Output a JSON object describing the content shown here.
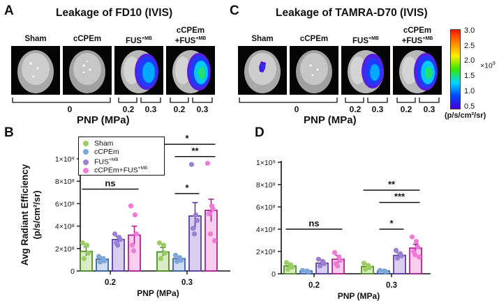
{
  "panel_letters": {
    "A": "A",
    "B": "B",
    "C": "C",
    "D": "D"
  },
  "panel_A": {
    "title": "Leakage of FD10 (IVIS)",
    "groups": [
      {
        "name": "Sham",
        "sup": ""
      },
      {
        "name": "cCPEm",
        "sup": ""
      },
      {
        "name": "FUS",
        "sup": "+MB"
      },
      {
        "line1": "cCPEm",
        "line2": "+FUS",
        "sup": "+MB"
      }
    ],
    "pnp_labels": [
      "0",
      "0",
      "0.2",
      "0.3",
      "0.2",
      "0.3"
    ],
    "pnp_title": "PNP (MPa)"
  },
  "panel_C": {
    "title": "Leakage of TAMRA-D70 (IVIS)",
    "groups": [
      {
        "name": "Sham",
        "sup": ""
      },
      {
        "name": "cCPEm",
        "sup": ""
      },
      {
        "name": "FUS",
        "sup": "+MB"
      },
      {
        "line1": "cCPEm",
        "line2": "+FUS",
        "sup": "+MB"
      }
    ],
    "pnp_labels": [
      "0",
      "0",
      "0.2",
      "0.3",
      "0.2",
      "0.3"
    ],
    "pnp_title": "PNP (MPa)"
  },
  "colorbar": {
    "ticks": [
      "3.0",
      "2.5",
      "2.0",
      "1.5",
      "1.0",
      "0.5"
    ],
    "exponent_base": "×10",
    "exponent_power": "9",
    "unit": "(p/s/cm²/sr)",
    "colors": [
      "#ff1500",
      "#ff8a00",
      "#ffee00",
      "#35e800",
      "#00d9ff",
      "#0044ff",
      "#4a00d6"
    ]
  },
  "legend": [
    {
      "label": "Sham",
      "sup": "",
      "color": "#9ccc63"
    },
    {
      "label": "cCPEm",
      "sup": "",
      "color": "#7ea5d9"
    },
    {
      "label": "FUS",
      "sup": "+MB",
      "color": "#9b7fd0"
    },
    {
      "label": "cCPEm+FUS",
      "sup": "+MB",
      "color": "#f07ad8"
    }
  ],
  "chart_data": [
    {
      "id": "B",
      "type": "bar",
      "title": "",
      "xlabel": "PNP (MPa)",
      "ylabel_line1": "Avg Radiant Efficiency",
      "ylabel_line2": "(p/s/cm²/sr)",
      "ylim": [
        0,
        1000000000
      ],
      "yticks": [
        {
          "value": 0,
          "label": "0"
        },
        {
          "value": 200000000,
          "label": "2×10⁸"
        },
        {
          "value": 400000000,
          "label": "4×10⁸"
        },
        {
          "value": 600000000,
          "label": "6×10⁸"
        },
        {
          "value": 800000000,
          "label": "8×10⁸"
        },
        {
          "value": 1000000000,
          "label": "1×10⁹"
        }
      ],
      "categories": [
        "0.2",
        "0.3"
      ],
      "series": [
        {
          "name": "Sham",
          "color": "#9ccc63",
          "edge": "#4f8f2b",
          "values": [
            175000000,
            170000000
          ],
          "errors": [
            40000000,
            40000000
          ],
          "points": [
            [
              250000000,
              230000000,
              160000000,
              110000000
            ],
            [
              250000000,
              230000000,
              160000000,
              110000000
            ]
          ]
        },
        {
          "name": "cCPEm",
          "color": "#7ea5d9",
          "edge": "#3a64a8",
          "values": [
            105000000,
            110000000
          ],
          "errors": [
            20000000,
            20000000
          ],
          "points": [
            [
              130000000,
              110000000,
              90000000,
              80000000
            ],
            [
              140000000,
              120000000,
              95000000,
              85000000
            ]
          ]
        },
        {
          "name": "FUS+MB",
          "color": "#9b7fd0",
          "edge": "#5b3ea8",
          "values": [
            280000000,
            490000000
          ],
          "errors": [
            30000000,
            120000000
          ],
          "points": [
            [
              330000000,
              300000000,
              280000000,
              250000000,
              230000000
            ],
            [
              950000000,
              500000000,
              450000000,
              380000000,
              330000000
            ]
          ]
        },
        {
          "name": "cCPEm+FUS+MB",
          "color": "#f07ad8",
          "edge": "#b0228f",
          "values": [
            320000000,
            540000000
          ],
          "errors": [
            80000000,
            100000000
          ],
          "points": [
            [
              580000000,
              500000000,
              330000000,
              230000000,
              180000000
            ],
            [
              960000000,
              580000000,
              550000000,
              510000000,
              330000000,
              270000000
            ]
          ]
        }
      ],
      "significance": [
        {
          "label": "ns",
          "from_group": 0,
          "from_series": 0,
          "to_group": 0,
          "to_series": 3,
          "y": 730000000
        },
        {
          "label": "*",
          "from_group": 1,
          "from_series": 0,
          "to_group": 1,
          "to_series": 3,
          "y": 1130000000
        },
        {
          "label": "**",
          "from_group": 1,
          "from_series": 1,
          "to_group": 1,
          "to_series": 3,
          "y": 1020000000
        },
        {
          "label": "*",
          "from_group": 1,
          "from_series": 1,
          "to_group": 1,
          "to_series": 2,
          "y": 690000000
        }
      ]
    },
    {
      "id": "D",
      "type": "bar",
      "title": "",
      "xlabel": "PNP (MPa)",
      "ylabel_line1": "",
      "ylabel_line2": "",
      "ylim": [
        0,
        1000000000
      ],
      "yticks": [
        {
          "value": 0,
          "label": "0"
        },
        {
          "value": 200000000,
          "label": "2×10⁸"
        },
        {
          "value": 400000000,
          "label": "4×10⁸"
        },
        {
          "value": 600000000,
          "label": "6×10⁸"
        },
        {
          "value": 800000000,
          "label": "8×10⁸"
        },
        {
          "value": 1000000000,
          "label": "1×10⁹"
        }
      ],
      "categories": [
        "0.2",
        "0.3"
      ],
      "series": [
        {
          "name": "Sham",
          "color": "#9ccc63",
          "edge": "#4f8f2b",
          "values": [
            70000000,
            65000000
          ],
          "errors": [
            20000000,
            20000000
          ],
          "points": [
            [
              100000000,
              80000000,
              60000000,
              40000000
            ],
            [
              95000000,
              75000000,
              55000000,
              40000000
            ]
          ]
        },
        {
          "name": "cCPEm",
          "color": "#7ea5d9",
          "edge": "#3a64a8",
          "values": [
            25000000,
            25000000
          ],
          "errors": [
            5000000,
            5000000
          ],
          "points": [
            [
              30000000,
              25000000,
              20000000
            ],
            [
              30000000,
              25000000,
              20000000
            ]
          ]
        },
        {
          "name": "FUS+MB",
          "color": "#9b7fd0",
          "edge": "#5b3ea8",
          "values": [
            95000000,
            165000000
          ],
          "errors": [
            25000000,
            20000000
          ],
          "points": [
            [
              130000000,
              110000000,
              90000000,
              70000000
            ],
            [
              210000000,
              180000000,
              160000000,
              140000000
            ]
          ]
        },
        {
          "name": "cCPEm+FUS+MB",
          "color": "#f07ad8",
          "edge": "#b0228f",
          "values": [
            130000000,
            230000000
          ],
          "errors": [
            35000000,
            35000000
          ],
          "points": [
            [
              190000000,
              150000000,
              120000000,
              90000000,
              70000000
            ],
            [
              330000000,
              290000000,
              240000000,
              200000000,
              170000000,
              150000000
            ]
          ]
        }
      ],
      "significance": [
        {
          "label": "ns",
          "from_group": 0,
          "from_series": 0,
          "to_group": 0,
          "to_series": 3,
          "y": 400000000
        },
        {
          "label": "**",
          "from_group": 1,
          "from_series": 0,
          "to_group": 1,
          "to_series": 3,
          "y": 750000000
        },
        {
          "label": "***",
          "from_group": 1,
          "from_series": 1,
          "to_group": 1,
          "to_series": 3,
          "y": 640000000
        },
        {
          "label": "*",
          "from_group": 1,
          "from_series": 1,
          "to_group": 1,
          "to_series": 2,
          "y": 400000000
        }
      ]
    }
  ]
}
